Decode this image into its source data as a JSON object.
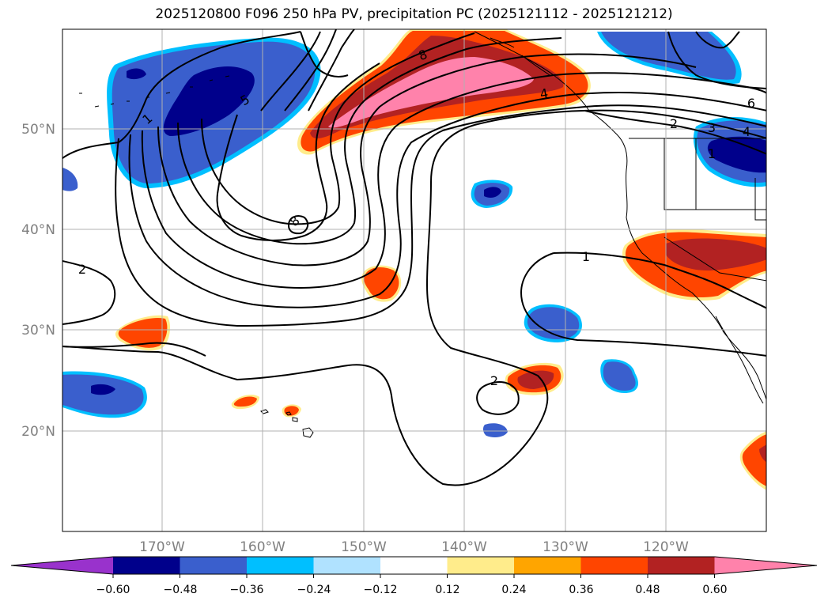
{
  "title": "2025120800 F096 250 hPa PV, precipitation PC (2025121112 - 2025121212)",
  "map": {
    "lat_labels": [
      "50°N",
      "40°N",
      "30°N",
      "20°N"
    ],
    "lon_labels": [
      "170°W",
      "160°W",
      "150°W",
      "140°W",
      "130°W",
      "120°W"
    ],
    "pv_contour_labels": [
      "1",
      "5",
      "8",
      "8",
      "4",
      "2",
      "3",
      "4",
      "6",
      "1",
      "2",
      "1",
      "2"
    ]
  },
  "colorbar": {
    "tick_labels": [
      "−0.60",
      "−0.48",
      "−0.36",
      "−0.24",
      "−0.12",
      "0.12",
      "0.24",
      "0.36",
      "0.48",
      "0.60"
    ],
    "colors": [
      "#9932CC",
      "#00008B",
      "#3A5FCD",
      "#00BFFF",
      "#B0E2FF",
      "#FFFFFF",
      "#FFEC8B",
      "#FFA500",
      "#FF4500",
      "#B22222",
      "#FF82AB"
    ]
  },
  "colors": {
    "negative_deep": "#00008B",
    "negative_mid": "#3A5FCD",
    "negative_light": "#00BFFF",
    "positive_light": "#FFEC8B",
    "positive_mid": "#FF4500",
    "positive_strong": "#B22222",
    "positive_max": "#FF82AB"
  }
}
